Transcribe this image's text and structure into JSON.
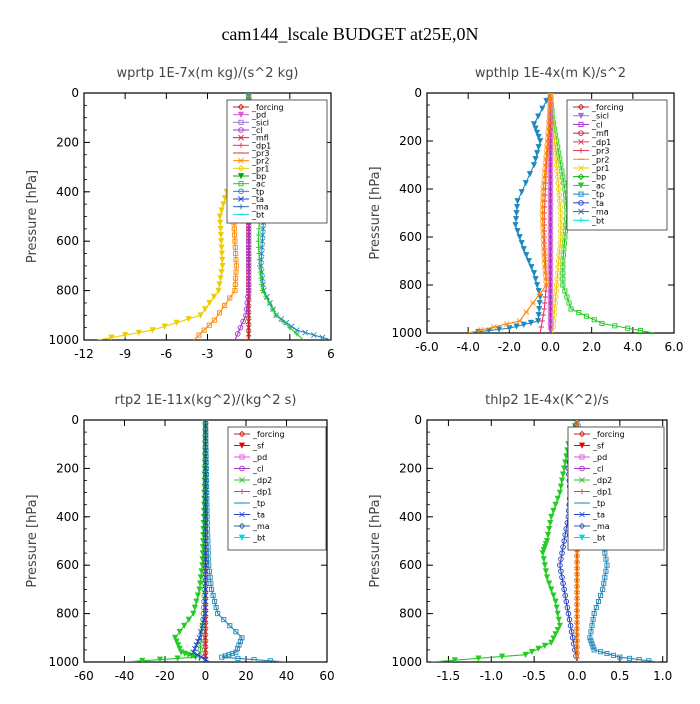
{
  "figure_title": "cam144_lscale  BUDGET at25E,0N",
  "colors": {
    "forcing": "#cc2222",
    "pd": "#e055e0",
    "sicl": "#a070d0",
    "cl": "#aa33cc",
    "mfl": "#cc2244",
    "dp1": "#ee3366",
    "pr3": "#dd3355",
    "pr2": "#ff8800",
    "pr1": "#eecc00",
    "bp": "#00aa00",
    "ac": "#22cc22",
    "tp": "#2288bb",
    "ta": "#2244cc",
    "ma": "#3366aa",
    "bt": "#00dddd",
    "sf": "#ee0000",
    "dp2": "#33bb33"
  },
  "chart_data": [
    {
      "type": "line",
      "title": "wprtp   1E-7x(m kg)/(s^2 kg)",
      "ylabel": "Pressure [hPa]",
      "xlim": [
        -12,
        6
      ],
      "ylim": [
        1000,
        0
      ],
      "xticks": [
        -12,
        -9,
        -6,
        -3,
        0,
        3,
        6
      ],
      "xtick_labels": [
        "-12",
        "-9",
        "-6",
        "-3",
        "0",
        "3",
        "6"
      ],
      "yticks": [
        0,
        200,
        400,
        600,
        800,
        1000
      ],
      "ytick_labels": [
        "0",
        "200",
        "400",
        "600",
        "800",
        "1000"
      ],
      "legend_position": "top-right",
      "legend": [
        "_forcing",
        "_pd",
        "_sicl",
        "_cl",
        "_mfl",
        "_dp1",
        "_pr3",
        "_pr2",
        "_pr1",
        "_bp",
        "_ac",
        "_tp",
        "_ta",
        "_ma",
        "_bt"
      ],
      "series": [
        {
          "name": "_forcing",
          "color": "#cc2222",
          "x": [
            0,
            0,
            0,
            0,
            0,
            0,
            0,
            0,
            0,
            0,
            0
          ],
          "y": [
            0,
            100,
            200,
            300,
            400,
            500,
            600,
            700,
            800,
            900,
            1000
          ]
        },
        {
          "name": "_pr1",
          "color": "#eecc00",
          "x": [
            0,
            -0.1,
            -0.3,
            -0.8,
            -1.6,
            -2.1,
            -2.0,
            -1.9,
            -2.2,
            -3.5,
            -7.0,
            -11.0
          ],
          "y": [
            0,
            100,
            200,
            300,
            400,
            500,
            600,
            700,
            800,
            900,
            960,
            1000
          ]
        },
        {
          "name": "_pr2",
          "color": "#ff8800",
          "x": [
            0,
            -0.05,
            -0.2,
            -0.5,
            -0.9,
            -1.1,
            -1.0,
            -0.9,
            -1.0,
            -2.5,
            -4.0
          ],
          "y": [
            0,
            100,
            200,
            300,
            400,
            500,
            600,
            700,
            800,
            920,
            1000
          ]
        },
        {
          "name": "_cl",
          "color": "#aa33cc",
          "x": [
            0,
            0,
            0,
            0,
            0,
            0,
            0,
            0,
            0,
            -0.2,
            -1.0
          ],
          "y": [
            0,
            100,
            200,
            300,
            400,
            500,
            600,
            700,
            800,
            900,
            1000
          ]
        },
        {
          "name": "_tp",
          "color": "#2288bb",
          "x": [
            0,
            0.05,
            0.2,
            0.5,
            0.9,
            1.1,
            1.0,
            0.9,
            1.1,
            2.0,
            3.5,
            6.0
          ],
          "y": [
            0,
            100,
            200,
            300,
            400,
            500,
            600,
            700,
            800,
            900,
            960,
            1000
          ]
        },
        {
          "name": "_ac",
          "color": "#22cc22",
          "x": [
            0,
            0,
            0.1,
            0.3,
            0.6,
            0.8,
            0.7,
            0.8,
            1.0,
            2.0,
            4.0
          ],
          "y": [
            0,
            100,
            200,
            300,
            400,
            500,
            600,
            700,
            800,
            900,
            1000
          ]
        }
      ]
    },
    {
      "type": "line",
      "title": "wpthlp   1E-4x(m K)/s^2",
      "ylabel": "Pressure [hPa]",
      "xlim": [
        -6,
        6
      ],
      "ylim": [
        1000,
        0
      ],
      "xticks": [
        -6,
        -4,
        -2,
        0,
        2,
        4,
        6
      ],
      "xtick_labels": [
        "-6.0",
        "-4.0",
        "-2.0",
        "0.0",
        "2.0",
        "4.0",
        "6.0"
      ],
      "yticks": [
        0,
        200,
        400,
        600,
        800,
        1000
      ],
      "ytick_labels": [
        "0",
        "200",
        "400",
        "600",
        "800",
        "1000"
      ],
      "legend_position": "top-right",
      "legend": [
        "_forcing",
        "_sicl",
        "_cl",
        "_mfl",
        "_dp1",
        "_pr3",
        "_pr2",
        "_pr1",
        "_bp",
        "_ac",
        "_tp",
        "_ta",
        "_ma",
        "_bt"
      ],
      "series": [
        {
          "name": "_forcing",
          "color": "#cc2222",
          "x": [
            0,
            0,
            0,
            0,
            0,
            0,
            0,
            0,
            0,
            0,
            0
          ],
          "y": [
            0,
            100,
            200,
            300,
            400,
            500,
            600,
            700,
            800,
            900,
            1000
          ]
        },
        {
          "name": "_tp",
          "color": "#2288bb",
          "x": [
            0,
            -0.8,
            -0.5,
            -0.8,
            -1.6,
            -1.7,
            -1.3,
            -0.8,
            -0.5,
            -0.6,
            -2.0,
            -4.0
          ],
          "y": [
            0,
            130,
            200,
            300,
            450,
            550,
            650,
            750,
            850,
            950,
            980,
            1000
          ]
        },
        {
          "name": "_ac",
          "color": "#22cc22",
          "x": [
            0,
            0.1,
            0.3,
            0.5,
            0.7,
            0.8,
            0.7,
            0.6,
            0.6,
            1.0,
            2.5,
            5.0
          ],
          "y": [
            0,
            100,
            200,
            300,
            400,
            500,
            600,
            700,
            800,
            900,
            960,
            1000
          ]
        },
        {
          "name": "_pr1",
          "color": "#eecc00",
          "x": [
            0,
            0.05,
            0.2,
            0.3,
            0.4,
            0.5,
            0.5,
            0.4,
            0.3,
            0.2,
            0.1
          ],
          "y": [
            0,
            100,
            200,
            300,
            400,
            500,
            600,
            700,
            800,
            900,
            1000
          ]
        },
        {
          "name": "_pd",
          "color": "#e055e0",
          "x": [
            0,
            0,
            0,
            0,
            0,
            0,
            0,
            0,
            0,
            0,
            0
          ],
          "y": [
            0,
            100,
            200,
            300,
            400,
            500,
            600,
            700,
            800,
            900,
            1000
          ]
        },
        {
          "name": "_cl",
          "color": "#aa33cc",
          "x": [
            0,
            0,
            0,
            0,
            0,
            0,
            0,
            0,
            0,
            0,
            0
          ],
          "y": [
            0,
            100,
            200,
            300,
            400,
            500,
            600,
            700,
            800,
            900,
            1000
          ]
        },
        {
          "name": "_dp1",
          "color": "#ee3366",
          "x": [
            0,
            -0.05,
            -0.1,
            -0.2,
            -0.25,
            -0.3,
            -0.3,
            -0.25,
            -0.2,
            -0.3,
            -0.5
          ],
          "y": [
            0,
            100,
            200,
            300,
            400,
            500,
            600,
            700,
            800,
            900,
            1000
          ]
        },
        {
          "name": "_pr2",
          "color": "#ff8800",
          "x": [
            0,
            -0.05,
            -0.15,
            -0.25,
            -0.35,
            -0.4,
            -0.35,
            -0.3,
            -0.2,
            -1.5,
            -4.0
          ],
          "y": [
            0,
            100,
            200,
            300,
            400,
            500,
            600,
            700,
            800,
            950,
            1000
          ]
        }
      ]
    },
    {
      "type": "line",
      "title": "rtp2   1E-11x(kg^2)/(kg^2 s)",
      "ylabel": "Pressure [hPa]",
      "xlim": [
        -60,
        60
      ],
      "ylim": [
        1000,
        0
      ],
      "xticks": [
        -60,
        -40,
        -20,
        0,
        20,
        40,
        60
      ],
      "xtick_labels": [
        "-60",
        "-40",
        "-20",
        "0",
        "20",
        "40",
        "60"
      ],
      "yticks": [
        0,
        200,
        400,
        600,
        800,
        1000
      ],
      "ytick_labels": [
        "0",
        "200",
        "400",
        "600",
        "800",
        "1000"
      ],
      "legend_position": "top-right",
      "legend": [
        "_forcing",
        "_sf",
        "_pd",
        "_cl",
        "_dp2",
        "_dp1",
        "_tp",
        "_ta",
        "_ma",
        "_bt"
      ],
      "series": [
        {
          "name": "_forcing",
          "color": "#cc2222",
          "x": [
            0,
            0,
            0,
            0,
            0,
            0,
            0,
            0,
            0,
            0,
            0
          ],
          "y": [
            0,
            100,
            200,
            300,
            400,
            500,
            600,
            700,
            800,
            900,
            1000
          ]
        },
        {
          "name": "_dp1",
          "color": "#22cc22",
          "x": [
            0,
            -0.2,
            -0.4,
            -0.6,
            -0.8,
            -1.2,
            -1.6,
            -3.0,
            -6.0,
            -15.0,
            -12.0,
            -5.0,
            -40.0
          ],
          "y": [
            0,
            100,
            200,
            300,
            400,
            500,
            600,
            700,
            800,
            900,
            960,
            980,
            1000
          ]
        },
        {
          "name": "_tp",
          "color": "#2288bb",
          "x": [
            0,
            0.2,
            0.4,
            0.6,
            0.8,
            1.2,
            1.6,
            3.0,
            6.0,
            18.0,
            15.0,
            8.0,
            40.0
          ],
          "y": [
            0,
            100,
            200,
            300,
            400,
            500,
            600,
            700,
            800,
            900,
            960,
            980,
            1000
          ]
        },
        {
          "name": "_dp2",
          "color": "#33bb33",
          "x": [
            0,
            0,
            0,
            0,
            0,
            0,
            0,
            -0.5,
            -1.0,
            -2.0,
            -3.0
          ],
          "y": [
            0,
            100,
            200,
            300,
            400,
            500,
            600,
            700,
            800,
            900,
            1000
          ]
        },
        {
          "name": "_ta",
          "color": "#2244cc",
          "x": [
            0,
            0,
            0,
            0,
            0,
            0,
            0,
            0,
            0,
            -3.0,
            -6.0,
            2.0
          ],
          "y": [
            0,
            100,
            200,
            300,
            400,
            500,
            600,
            700,
            800,
            900,
            960,
            1000
          ]
        }
      ]
    },
    {
      "type": "line",
      "title": "thlp2   1E-4x(K^2)/s",
      "ylabel": "Pressure [hPa]",
      "xlim": [
        -1.75,
        1.05
      ],
      "ylim": [
        1000,
        0
      ],
      "xticks": [
        -1.5,
        -1.0,
        -0.5,
        0.0,
        0.5,
        1.0
      ],
      "xtick_labels": [
        "-1.5",
        "-1.0",
        "-0.5",
        "0.0",
        "0.5",
        "1.0"
      ],
      "yticks": [
        0,
        200,
        400,
        600,
        800,
        1000
      ],
      "ytick_labels": [
        "0",
        "200",
        "400",
        "600",
        "800",
        "1000"
      ],
      "legend_position": "top-right",
      "legend": [
        "_forcing",
        "_sf",
        "_pd",
        "_cl",
        "_dp2",
        "_dp1",
        "_tp",
        "_ta",
        "_ma",
        "_bt"
      ],
      "series": [
        {
          "name": "_forcing",
          "color": "#cc2222",
          "x": [
            0,
            0,
            0,
            0,
            0,
            0,
            0,
            0,
            0,
            0,
            0
          ],
          "y": [
            0,
            100,
            200,
            300,
            400,
            500,
            600,
            700,
            800,
            900,
            1000
          ]
        },
        {
          "name": "_dp1",
          "color": "#22cc22",
          "x": [
            0,
            -0.1,
            -0.15,
            -0.2,
            -0.3,
            -0.35,
            -0.4,
            -0.35,
            -0.25,
            -0.2,
            -0.3,
            -0.6,
            -1.7
          ],
          "y": [
            0,
            100,
            200,
            300,
            400,
            500,
            550,
            650,
            750,
            850,
            920,
            970,
            1000
          ]
        },
        {
          "name": "_tp",
          "color": "#2288bb",
          "x": [
            0,
            0.05,
            0.1,
            0.15,
            0.2,
            0.3,
            0.35,
            0.3,
            0.2,
            0.15,
            0.2,
            0.5,
            0.95
          ],
          "y": [
            0,
            100,
            200,
            300,
            400,
            500,
            600,
            700,
            800,
            900,
            950,
            980,
            1000
          ]
        },
        {
          "name": "_ta",
          "color": "#2244cc",
          "x": [
            0,
            -0.05,
            -0.1,
            -0.08,
            -0.1,
            -0.15,
            -0.2,
            -0.15,
            -0.1,
            -0.05,
            0.0
          ],
          "y": [
            0,
            100,
            200,
            300,
            400,
            500,
            600,
            700,
            800,
            900,
            1000
          ]
        },
        {
          "name": "_pd",
          "color": "#ff8800",
          "x": [
            0,
            0,
            0,
            0,
            0,
            0,
            0,
            0,
            0,
            0,
            0
          ],
          "y": [
            0,
            100,
            200,
            300,
            400,
            500,
            600,
            700,
            800,
            900,
            1000
          ]
        }
      ]
    }
  ]
}
